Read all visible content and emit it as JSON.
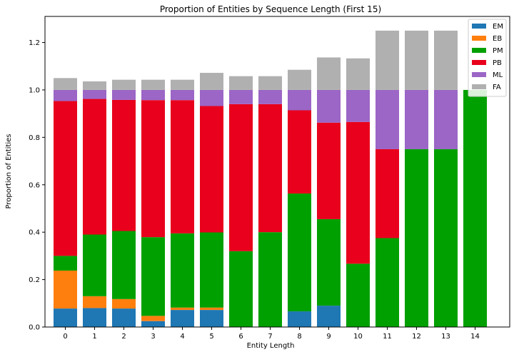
{
  "chart_data": {
    "type": "bar",
    "stacked": true,
    "title": "Proportion of Entities by Sequence Length (First 15)",
    "xlabel": "Entity Length",
    "ylabel": "Proportion of Entities",
    "ylim": [
      0,
      1.31
    ],
    "yticks": [
      "0.0",
      "0.2",
      "0.4",
      "0.6",
      "0.8",
      "1.0",
      "1.2"
    ],
    "categories": [
      "0",
      "1",
      "2",
      "3",
      "4",
      "5",
      "6",
      "7",
      "8",
      "9",
      "10",
      "11",
      "12",
      "13",
      "14"
    ],
    "legend_position": "top-right",
    "grid": false,
    "series": [
      {
        "name": "EM",
        "color": "#1f77b4",
        "values": [
          0.078,
          0.08,
          0.078,
          0.025,
          0.072,
          0.072,
          0,
          0,
          0.066,
          0.09,
          0,
          0,
          0,
          0,
          0
        ]
      },
      {
        "name": "EB",
        "color": "#ff7f0e",
        "values": [
          0.16,
          0.05,
          0.04,
          0.022,
          0.01,
          0.01,
          0,
          0,
          0,
          0,
          0,
          0,
          0,
          0,
          0
        ]
      },
      {
        "name": "PM",
        "color": "#00a000",
        "values": [
          0.062,
          0.26,
          0.287,
          0.332,
          0.313,
          0.317,
          0.32,
          0.4,
          0.497,
          0.365,
          0.267,
          0.375,
          0.75,
          0.75,
          1.0
        ]
      },
      {
        "name": "PB",
        "color": "#e8001c",
        "values": [
          0.653,
          0.572,
          0.553,
          0.578,
          0.562,
          0.533,
          0.62,
          0.54,
          0.351,
          0.407,
          0.598,
          0.375,
          0,
          0,
          0
        ]
      },
      {
        "name": "ML",
        "color": "#9b66c6",
        "values": [
          0.047,
          0.038,
          0.042,
          0.043,
          0.043,
          0.068,
          0.06,
          0.06,
          0.086,
          0.138,
          0.135,
          0.25,
          0.25,
          0.25,
          0
        ]
      },
      {
        "name": "FA",
        "color": "#b0b0b0",
        "values": [
          0.05,
          0.036,
          0.043,
          0.043,
          0.043,
          0.072,
          0.058,
          0.058,
          0.085,
          0.137,
          0.133,
          0.25,
          0.25,
          0.25,
          0
        ]
      }
    ]
  }
}
